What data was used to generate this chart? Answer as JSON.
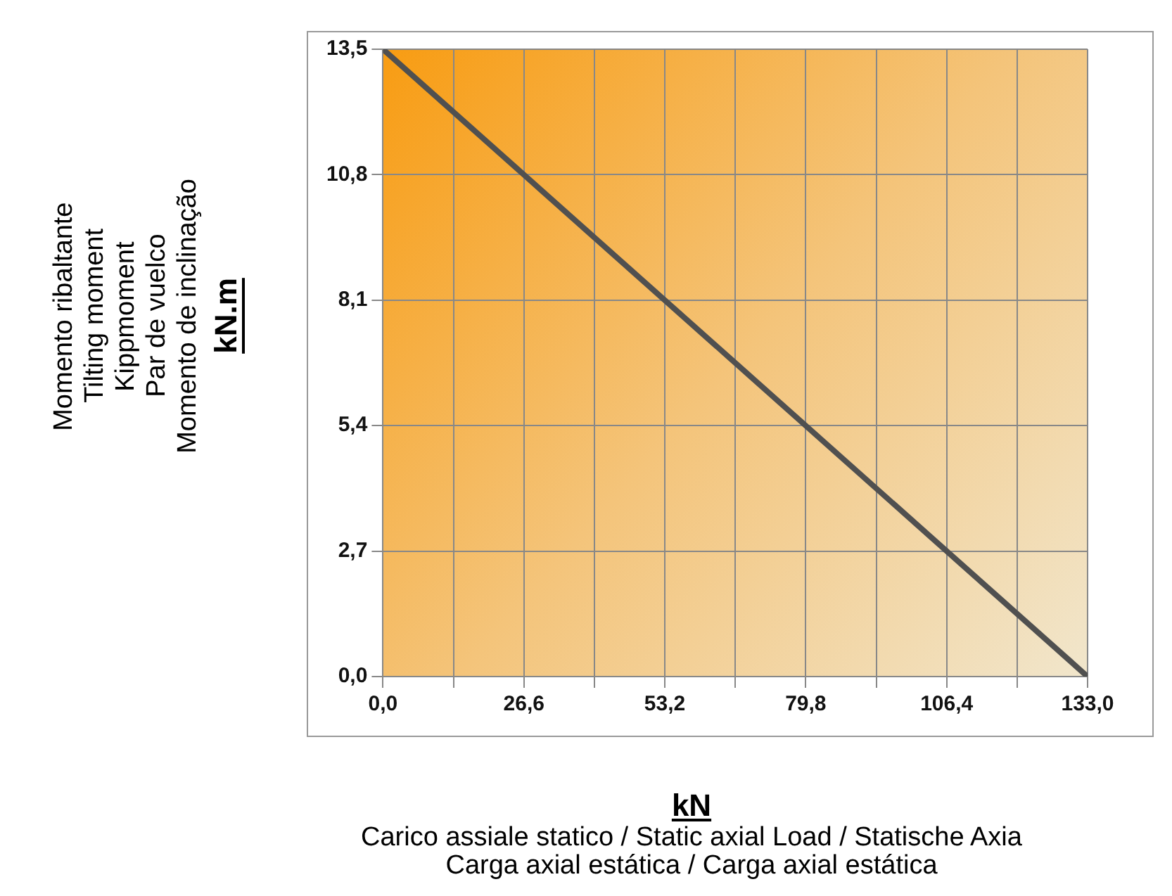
{
  "chart_data": {
    "type": "line",
    "ylabel": "Momento ribaltante\nTilting moment\nKippmoment\nPar de vuelco\nMomento de inclinação\nkN.m",
    "xlabel": "kN\nCarico assiale statico / Static axial Load / Statische Axia\nCarga axial estática / Carga axial estática",
    "x": [
      0,
      133
    ],
    "series": [
      {
        "color": "#505050",
        "values": [
          13.5,
          0
        ]
      }
    ],
    "xlim": [
      0,
      133
    ],
    "xticks": [
      {
        "value": 0,
        "label": "0,0"
      },
      {
        "value": 13.3,
        "label": null
      },
      {
        "value": 26.6,
        "label": "26,6"
      },
      {
        "value": 39.9,
        "label": null
      },
      {
        "value": 53.2,
        "label": "53,2"
      },
      {
        "value": 66.5,
        "label": null
      },
      {
        "value": 79.8,
        "label": "79,8"
      },
      {
        "value": 93.1,
        "label": null
      },
      {
        "value": 106.4,
        "label": "106,4"
      },
      {
        "value": 119.7,
        "label": null
      },
      {
        "value": 133,
        "label": "133,0"
      }
    ],
    "ylim": [
      0,
      13.5
    ],
    "yticks": [
      {
        "value": 0,
        "label": "0,0"
      },
      {
        "value": 2.7,
        "label": "2,7"
      },
      {
        "value": 5.4,
        "label": "5,4"
      },
      {
        "value": 8.1,
        "label": "8,1"
      },
      {
        "value": 10.8,
        "label": "10,8"
      },
      {
        "value": 13.5,
        "label": "13,5"
      }
    ],
    "grid": true,
    "marker": "none",
    "line_style": "solid"
  }
}
